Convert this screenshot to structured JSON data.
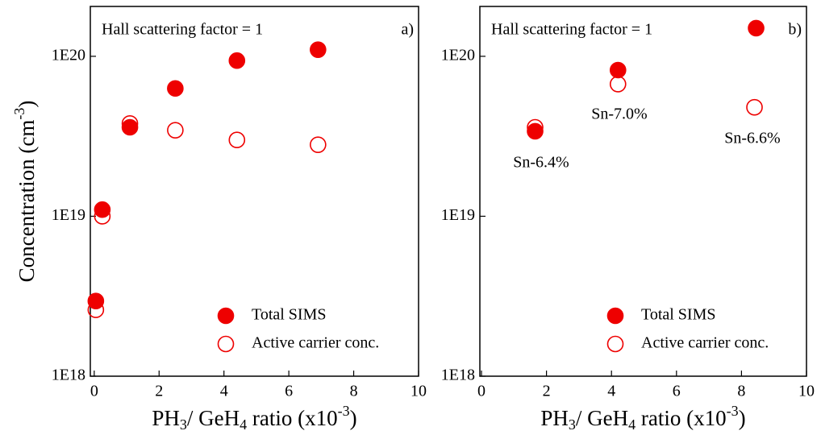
{
  "chart_data": [
    {
      "type": "scatter",
      "log_y": true,
      "panel_label": "a)",
      "annotation": "Hall scattering factor = 1",
      "ylabel": [
        "Concentration (cm",
        "-3",
        ")"
      ],
      "xlabel": [
        "PH",
        "3",
        "/ GeH",
        "4",
        " ratio (x10",
        "-3",
        ")"
      ],
      "xlim": [
        -0.12,
        10
      ],
      "xticks": [
        0,
        2,
        4,
        6,
        8,
        10
      ],
      "ylim": [
        1e+18,
        2.05e+20
      ],
      "yticks": [
        {
          "value": 1e+18,
          "label": "1E18"
        },
        {
          "value": 1e+19,
          "label": "1E19"
        },
        {
          "value": 1e+20,
          "label": "1E20"
        }
      ],
      "legend": "lower right",
      "series": [
        {
          "name": "Total SIMS",
          "color": "#ee0000",
          "filled": true,
          "x": [
            0.05,
            0.25,
            1.1,
            2.5,
            4.4,
            6.9
          ],
          "values": [
            2.95e+18,
            1.1e+19,
            3.6e+19,
            6.3e+19,
            9.4e+19,
            1.1e+20
          ]
        },
        {
          "name": "Active carrier conc.",
          "color": "#ee0000",
          "filled": false,
          "x": [
            0.05,
            0.25,
            1.1,
            2.5,
            4.4,
            6.9
          ],
          "values": [
            2.6e+18,
            1e+19,
            3.8e+19,
            3.45e+19,
            3e+19,
            2.8e+19
          ]
        }
      ]
    },
    {
      "type": "scatter",
      "log_y": true,
      "panel_label": "b)",
      "annotation": "Hall scattering factor = 1",
      "xlabel": [
        "PH",
        "3",
        "/ GeH",
        "4",
        " ratio (x10",
        "-3",
        ")"
      ],
      "xlim": [
        -0.05,
        10
      ],
      "xticks": [
        0,
        2,
        4,
        6,
        8,
        10
      ],
      "ylim": [
        1e+18,
        2.05e+20
      ],
      "yticks": [
        {
          "value": 1e+18,
          "label": "1E18"
        },
        {
          "value": 1e+19,
          "label": "1E19"
        },
        {
          "value": 1e+20,
          "label": "1E20"
        }
      ],
      "legend": "lower right",
      "point_labels": [
        "Sn-6.4%",
        "Sn-7.0%",
        "Sn-6.6%"
      ],
      "series": [
        {
          "name": "Total SIMS",
          "color": "#ee0000",
          "filled": true,
          "x": [
            1.65,
            4.2,
            8.45
          ],
          "values": [
            3.4e+19,
            8.2e+19,
            1.5e+20
          ]
        },
        {
          "name": "Active carrier conc.",
          "color": "#ee0000",
          "filled": false,
          "x": [
            1.65,
            4.2,
            8.4
          ],
          "values": [
            3.6e+19,
            6.7e+19,
            4.8e+19
          ]
        }
      ]
    }
  ]
}
